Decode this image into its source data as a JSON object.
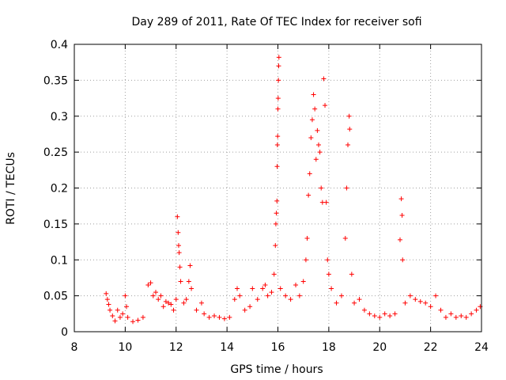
{
  "chart_data": {
    "type": "scatter",
    "title": "Day 289 of 2011, Rate Of TEC Index for receiver sofi",
    "xlabel": "GPS time / hours",
    "ylabel": "ROTI / TECUs",
    "xlim": [
      8,
      24
    ],
    "ylim": [
      0,
      0.4
    ],
    "x_ticks": [
      "8",
      "10",
      "12",
      "14",
      "16",
      "18",
      "20",
      "22",
      "24"
    ],
    "y_ticks": [
      "0",
      "0.05",
      "0.1",
      "0.15",
      "0.2",
      "0.25",
      "0.3",
      "0.35",
      "0.4"
    ],
    "grid": true,
    "marker": "+",
    "color": "#ff0000",
    "series": [
      {
        "name": "ROTI",
        "points": [
          [
            9.25,
            0.053
          ],
          [
            9.3,
            0.045
          ],
          [
            9.35,
            0.038
          ],
          [
            9.4,
            0.03
          ],
          [
            9.5,
            0.022
          ],
          [
            9.6,
            0.015
          ],
          [
            9.7,
            0.03
          ],
          [
            9.8,
            0.02
          ],
          [
            9.9,
            0.025
          ],
          [
            10.0,
            0.05
          ],
          [
            10.05,
            0.035
          ],
          [
            10.1,
            0.02
          ],
          [
            10.3,
            0.014
          ],
          [
            10.5,
            0.016
          ],
          [
            10.7,
            0.02
          ],
          [
            10.9,
            0.065
          ],
          [
            11.0,
            0.068
          ],
          [
            11.1,
            0.05
          ],
          [
            11.2,
            0.055
          ],
          [
            11.3,
            0.045
          ],
          [
            11.4,
            0.05
          ],
          [
            11.5,
            0.035
          ],
          [
            11.6,
            0.042
          ],
          [
            11.7,
            0.04
          ],
          [
            11.8,
            0.038
          ],
          [
            11.9,
            0.03
          ],
          [
            12.0,
            0.045
          ],
          [
            12.05,
            0.16
          ],
          [
            12.08,
            0.138
          ],
          [
            12.1,
            0.12
          ],
          [
            12.12,
            0.11
          ],
          [
            12.15,
            0.09
          ],
          [
            12.18,
            0.07
          ],
          [
            12.3,
            0.04
          ],
          [
            12.4,
            0.045
          ],
          [
            12.5,
            0.07
          ],
          [
            12.55,
            0.092
          ],
          [
            12.6,
            0.06
          ],
          [
            12.8,
            0.03
          ],
          [
            13.0,
            0.04
          ],
          [
            13.1,
            0.025
          ],
          [
            13.3,
            0.02
          ],
          [
            13.5,
            0.022
          ],
          [
            13.7,
            0.02
          ],
          [
            13.9,
            0.018
          ],
          [
            14.1,
            0.02
          ],
          [
            14.3,
            0.045
          ],
          [
            14.4,
            0.06
          ],
          [
            14.5,
            0.05
          ],
          [
            14.7,
            0.03
          ],
          [
            14.9,
            0.035
          ],
          [
            15.0,
            0.06
          ],
          [
            15.2,
            0.045
          ],
          [
            15.4,
            0.06
          ],
          [
            15.5,
            0.065
          ],
          [
            15.6,
            0.05
          ],
          [
            15.75,
            0.055
          ],
          [
            15.85,
            0.08
          ],
          [
            15.9,
            0.12
          ],
          [
            15.92,
            0.15
          ],
          [
            15.94,
            0.165
          ],
          [
            15.96,
            0.182
          ],
          [
            15.97,
            0.23
          ],
          [
            15.98,
            0.26
          ],
          [
            15.99,
            0.272
          ],
          [
            16.0,
            0.31
          ],
          [
            16.01,
            0.325
          ],
          [
            16.02,
            0.35
          ],
          [
            16.03,
            0.37
          ],
          [
            16.04,
            0.382
          ],
          [
            16.1,
            0.06
          ],
          [
            16.3,
            0.05
          ],
          [
            16.5,
            0.045
          ],
          [
            16.7,
            0.065
          ],
          [
            16.85,
            0.05
          ],
          [
            17.0,
            0.07
          ],
          [
            17.1,
            0.1
          ],
          [
            17.15,
            0.13
          ],
          [
            17.2,
            0.19
          ],
          [
            17.25,
            0.22
          ],
          [
            17.3,
            0.27
          ],
          [
            17.35,
            0.295
          ],
          [
            17.4,
            0.33
          ],
          [
            17.45,
            0.31
          ],
          [
            17.5,
            0.24
          ],
          [
            17.55,
            0.28
          ],
          [
            17.6,
            0.26
          ],
          [
            17.65,
            0.25
          ],
          [
            17.7,
            0.2
          ],
          [
            17.75,
            0.18
          ],
          [
            17.8,
            0.352
          ],
          [
            17.85,
            0.315
          ],
          [
            17.9,
            0.18
          ],
          [
            17.95,
            0.1
          ],
          [
            18.0,
            0.08
          ],
          [
            18.1,
            0.06
          ],
          [
            18.3,
            0.04
          ],
          [
            18.5,
            0.05
          ],
          [
            18.65,
            0.13
          ],
          [
            18.7,
            0.2
          ],
          [
            18.75,
            0.26
          ],
          [
            18.8,
            0.3
          ],
          [
            18.82,
            0.282
          ],
          [
            18.9,
            0.08
          ],
          [
            19.0,
            0.04
          ],
          [
            19.2,
            0.045
          ],
          [
            19.4,
            0.03
          ],
          [
            19.6,
            0.025
          ],
          [
            19.8,
            0.022
          ],
          [
            20.0,
            0.02
          ],
          [
            20.2,
            0.025
          ],
          [
            20.4,
            0.022
          ],
          [
            20.6,
            0.025
          ],
          [
            20.8,
            0.128
          ],
          [
            20.85,
            0.185
          ],
          [
            20.88,
            0.162
          ],
          [
            20.9,
            0.1
          ],
          [
            21.0,
            0.04
          ],
          [
            21.2,
            0.05
          ],
          [
            21.4,
            0.045
          ],
          [
            21.6,
            0.042
          ],
          [
            21.8,
            0.04
          ],
          [
            22.0,
            0.035
          ],
          [
            22.2,
            0.05
          ],
          [
            22.4,
            0.03
          ],
          [
            22.6,
            0.02
          ],
          [
            22.8,
            0.025
          ],
          [
            23.0,
            0.02
          ],
          [
            23.2,
            0.022
          ],
          [
            23.4,
            0.02
          ],
          [
            23.6,
            0.025
          ],
          [
            23.8,
            0.03
          ],
          [
            23.95,
            0.035
          ]
        ]
      }
    ]
  }
}
